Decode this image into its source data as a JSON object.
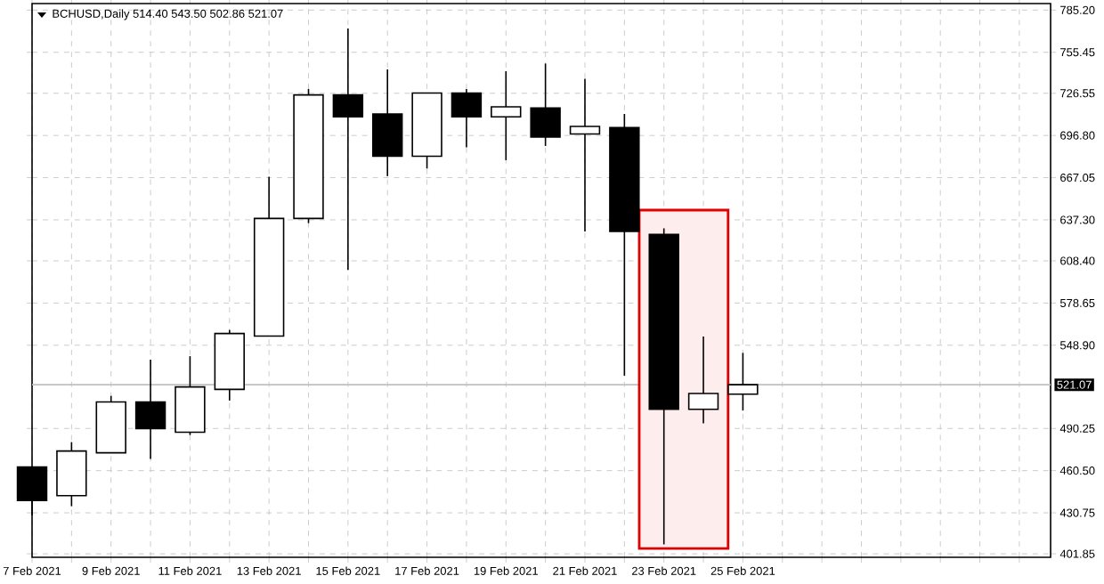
{
  "chart_data": {
    "type": "candlestick",
    "title": "BCHUSD,Daily  514.40 543.50 502.86 521.07",
    "x": [
      "2021-02-07",
      "2021-02-08",
      "2021-02-09",
      "2021-02-10",
      "2021-02-11",
      "2021-02-12",
      "2021-02-13",
      "2021-02-14",
      "2021-02-15",
      "2021-02-16",
      "2021-02-17",
      "2021-02-18",
      "2021-02-19",
      "2021-02-20",
      "2021-02-21",
      "2021-02-22",
      "2021-02-23",
      "2021-02-24",
      "2021-02-25"
    ],
    "ohlc": [
      [
        463.0,
        463.0,
        429.1,
        439.5
      ],
      [
        442.9,
        480.6,
        435.4,
        474.3
      ],
      [
        473.1,
        513.2,
        473.1,
        508.9
      ],
      [
        508.9,
        538.7,
        468.8,
        490.1
      ],
      [
        487.6,
        541.2,
        485.6,
        519.5
      ],
      [
        517.8,
        559.7,
        509.9,
        557.2
      ],
      [
        555.4,
        667.7,
        555.4,
        638.3
      ],
      [
        638.3,
        729.6,
        635.0,
        725.4
      ],
      [
        725.4,
        772.3,
        601.9,
        709.9
      ],
      [
        712.0,
        743.4,
        668.1,
        682.2
      ],
      [
        682.2,
        726.7,
        673.5,
        726.7
      ],
      [
        726.7,
        729.6,
        688.5,
        709.9
      ],
      [
        709.9,
        742.1,
        679.4,
        717.0
      ],
      [
        716.1,
        747.5,
        689.4,
        695.7
      ],
      [
        697.8,
        736.7,
        629.1,
        703.2
      ],
      [
        702.3,
        712.0,
        527.4,
        629.1
      ],
      [
        627.0,
        631.3,
        408.5,
        503.7
      ],
      [
        503.7,
        555.1,
        493.9,
        514.9
      ],
      [
        514.4,
        543.5,
        502.86,
        521.07
      ]
    ],
    "xlim": [
      "2021-02-07",
      "2021-03-04T19:00"
    ],
    "ylim": [
      399.4,
      789.8
    ],
    "xticks": [
      {
        "value": "2021-02-07",
        "label": "7 Feb 2021"
      },
      {
        "value": "2021-02-08",
        "label": null
      },
      {
        "value": "2021-02-09",
        "label": "9 Feb 2021"
      },
      {
        "value": "2021-02-10",
        "label": null
      },
      {
        "value": "2021-02-11",
        "label": "11 Feb 2021"
      },
      {
        "value": "2021-02-12",
        "label": null
      },
      {
        "value": "2021-02-13",
        "label": "13 Feb 2021"
      },
      {
        "value": "2021-02-14",
        "label": null
      },
      {
        "value": "2021-02-15",
        "label": "15 Feb 2021"
      },
      {
        "value": "2021-02-16",
        "label": null
      },
      {
        "value": "2021-02-17",
        "label": "17 Feb 2021"
      },
      {
        "value": "2021-02-18",
        "label": null
      },
      {
        "value": "2021-02-19",
        "label": "19 Feb 2021"
      },
      {
        "value": "2021-02-20",
        "label": null
      },
      {
        "value": "2021-02-21",
        "label": "21 Feb 2021"
      },
      {
        "value": "2021-02-22",
        "label": null
      },
      {
        "value": "2021-02-23",
        "label": "23 Feb 2021"
      },
      {
        "value": "2021-02-24",
        "label": null
      },
      {
        "value": "2021-02-25",
        "label": "25 Feb 2021"
      },
      {
        "value": "2021-02-26",
        "label": null
      },
      {
        "value": "2021-02-27",
        "label": null
      },
      {
        "value": "2021-02-28",
        "label": null
      },
      {
        "value": "2021-03-01",
        "label": null
      },
      {
        "value": "2021-03-02",
        "label": null
      },
      {
        "value": "2021-03-03",
        "label": null
      },
      {
        "value": "2021-03-04",
        "label": null
      }
    ],
    "yticks": [
      {
        "value": 401.85,
        "label": "401.85"
      },
      {
        "value": 430.75,
        "label": "430.75"
      },
      {
        "value": 460.5,
        "label": "460.50"
      },
      {
        "value": 490.25,
        "label": "490.25"
      },
      {
        "value": 548.9,
        "label": "548.90"
      },
      {
        "value": 578.65,
        "label": "578.65"
      },
      {
        "value": 608.4,
        "label": "608.40"
      },
      {
        "value": 637.3,
        "label": "637.30"
      },
      {
        "value": 667.05,
        "label": "667.05"
      },
      {
        "value": 696.8,
        "label": "696.80"
      },
      {
        "value": 726.55,
        "label": "726.55"
      },
      {
        "value": 755.45,
        "label": "755.45"
      },
      {
        "value": 785.2,
        "label": "785.20"
      }
    ],
    "grid": true,
    "ref_lines": [
      {
        "axis": "y",
        "value": 521.07,
        "label": "521.07",
        "color": "#c0c0c0"
      }
    ],
    "bands": [
      {
        "axis": "x",
        "from": "2021-02-22T09:00",
        "to": "2021-02-24T15:00",
        "color": "#e00000"
      }
    ]
  }
}
